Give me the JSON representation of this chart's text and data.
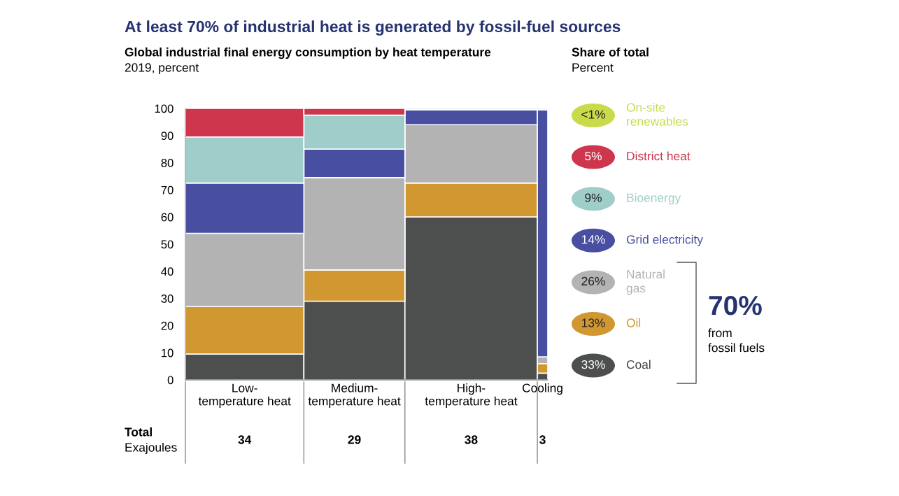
{
  "chart_data": {
    "type": "bar",
    "stacked": true,
    "title": "At least 70% of industrial heat is generated by fossil-fuel sources",
    "subtitle": "Global industrial final energy consumption by heat temperature",
    "ylabel": "2019, percent",
    "categories": [
      "Low-\ntemperature heat",
      "Medium-\ntemperature heat",
      "High-\ntemperature heat",
      "Cooling"
    ],
    "series": [
      {
        "name": "Coal",
        "color": "#4d4e4e",
        "values": [
          9.5,
          29,
          60,
          2.5
        ]
      },
      {
        "name": "Oil",
        "color": "#d19731",
        "values": [
          17.5,
          11.5,
          12.5,
          3.5
        ]
      },
      {
        "name": "Natural\ngas",
        "color": "#b3b3b3",
        "values": [
          27,
          34,
          21.5,
          2.5
        ]
      },
      {
        "name": "Grid electricity",
        "color": "#484fa0",
        "values": [
          18.5,
          10.5,
          5.5,
          91
        ]
      },
      {
        "name": "Bioenergy",
        "color": "#9fcdc9",
        "values": [
          17,
          12.5,
          0.5,
          0.5
        ]
      },
      {
        "name": "District heat",
        "color": "#cd364d",
        "values": [
          10.5,
          2.5,
          null,
          null
        ]
      },
      {
        "name": "On-site\nrenewables",
        "color": "#c9db4b",
        "values": [
          null,
          null,
          null,
          null
        ]
      }
    ],
    "ylim": [
      0,
      100
    ],
    "yticks": [
      0,
      10,
      20,
      30,
      40,
      50,
      60,
      70,
      80,
      90,
      100
    ],
    "legend": "right",
    "annotations": [
      "Share of total",
      "Percent",
      "<1%",
      "5%",
      "9%",
      "14%",
      "26%",
      "13%",
      "33%",
      "70%",
      "from\nfossil fuels",
      "Total",
      "Exajoules",
      "34",
      "29",
      "38",
      "3"
    ]
  }
}
